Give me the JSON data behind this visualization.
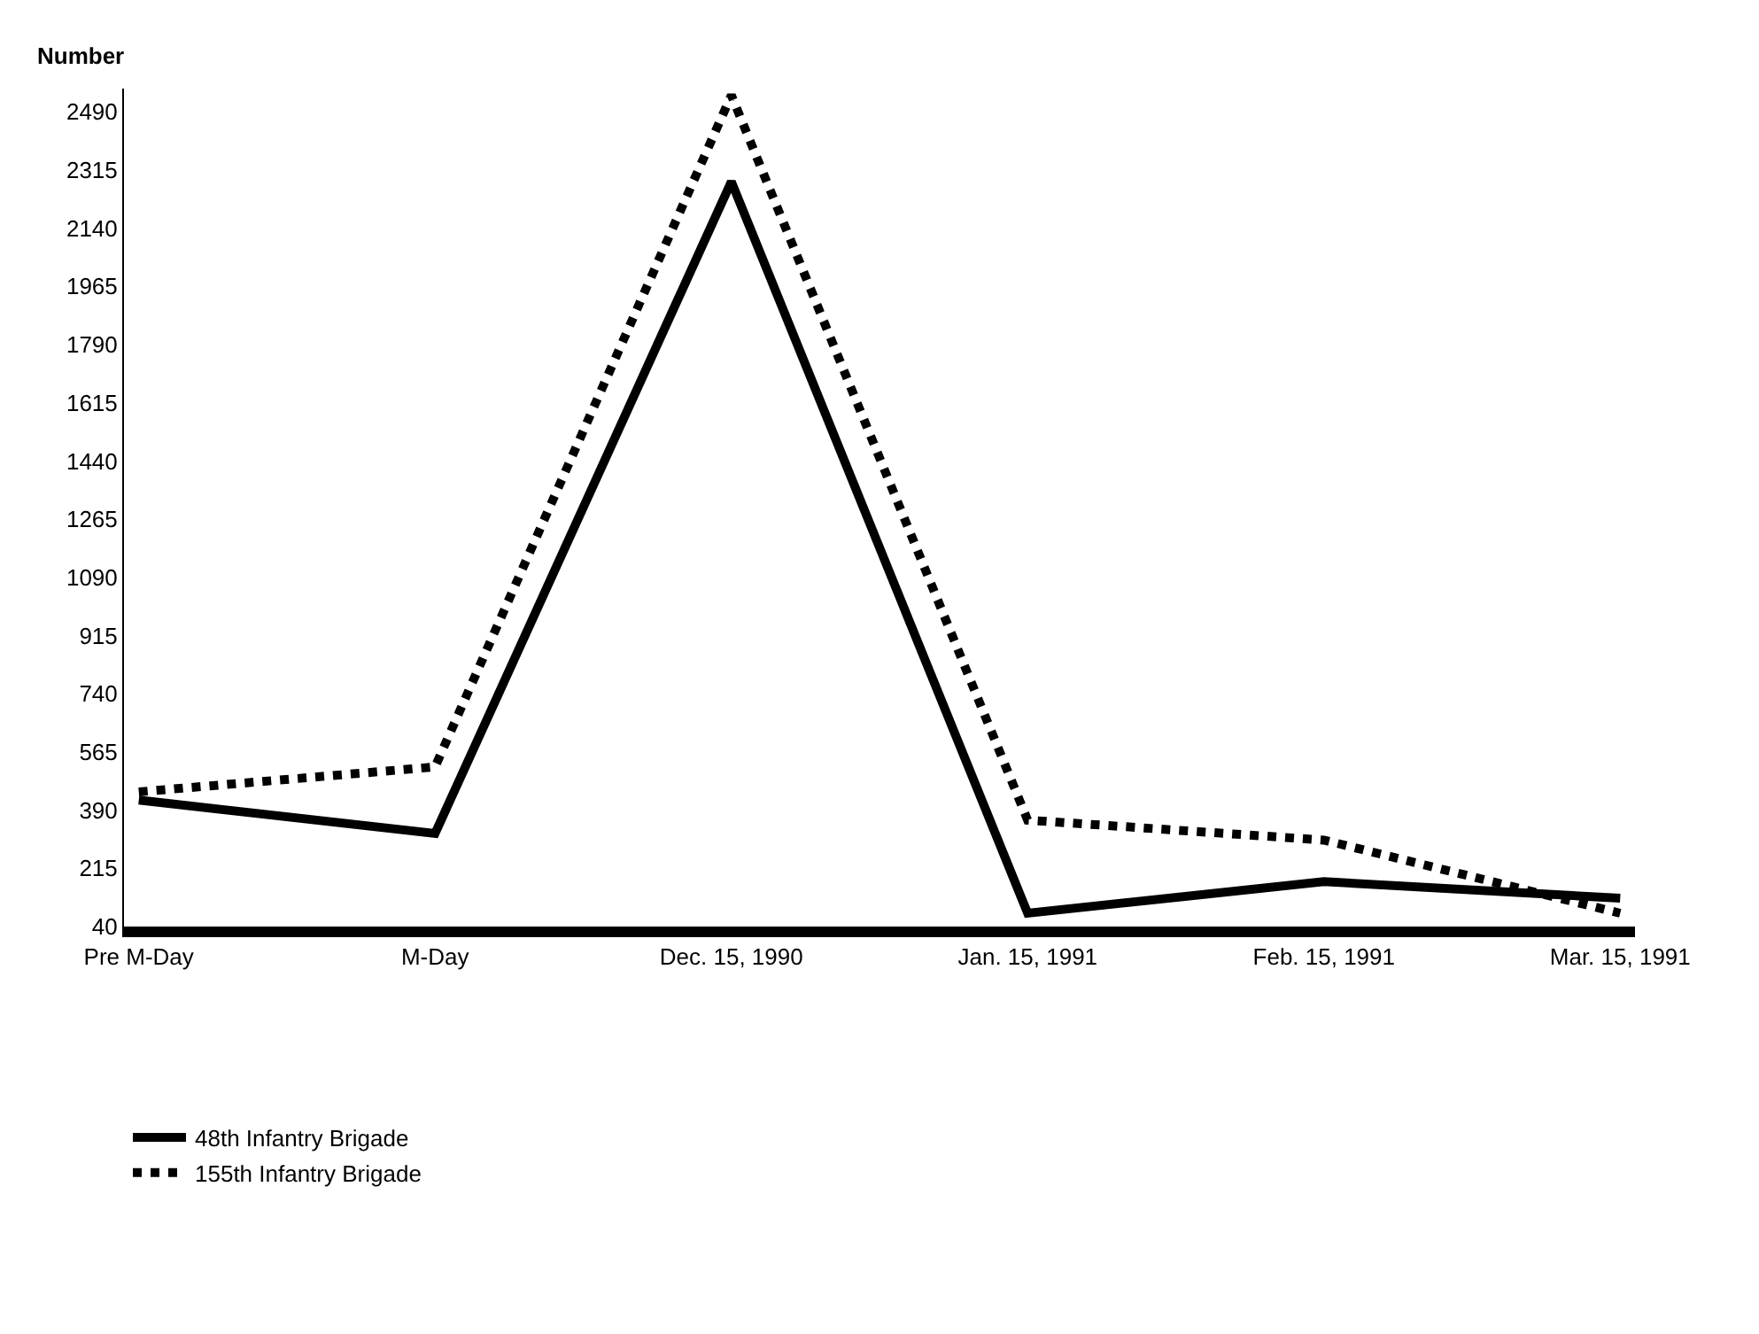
{
  "chart_data": {
    "type": "line",
    "ylabel": "Number",
    "categories": [
      "Pre M-Day",
      "M-Day",
      "Dec. 15, 1990",
      "Jan. 15, 1991",
      "Feb. 15, 1991",
      "Mar. 15, 1991"
    ],
    "series": [
      {
        "name": "48th Infantry Brigade",
        "color": "#000000",
        "line_style": "solid",
        "values": [
          420,
          320,
          2280,
          80,
          175,
          125
        ]
      },
      {
        "name": "155th Infantry Brigade",
        "color": "#000000",
        "line_style": "dotted",
        "values": [
          445,
          520,
          2540,
          360,
          300,
          80
        ]
      }
    ],
    "ylim": [
      40,
      2560
    ],
    "yticks": [
      40,
      215,
      390,
      565,
      740,
      915,
      1090,
      1265,
      1440,
      1615,
      1790,
      1965,
      2140,
      2315,
      2490
    ],
    "legend": "bottom left",
    "marker": "none"
  }
}
